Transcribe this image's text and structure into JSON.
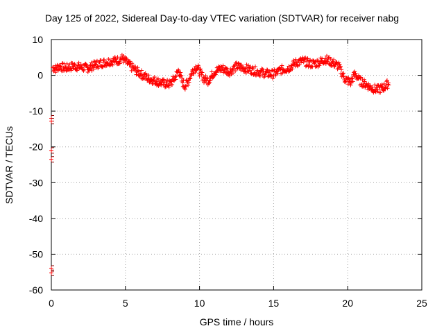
{
  "chart_data": {
    "type": "scatter",
    "title": "Day 125 of 2022, Sidereal Day-to-day VTEC variation (SDTVAR) for receiver nabg",
    "xlabel": "GPS time / hours",
    "ylabel": "SDTVAR / TECUs",
    "xlim": [
      0,
      25
    ],
    "ylim": [
      -60,
      10
    ],
    "xticks": [
      0,
      5,
      10,
      15,
      20,
      25
    ],
    "yticks": [
      10,
      0,
      -10,
      -20,
      -30,
      -40,
      -50,
      -60
    ],
    "grid": true,
    "marker": "+",
    "series": [
      {
        "name": "SDTVAR",
        "color": "#ff0000",
        "trend": [
          [
            0.1,
            2.2
          ],
          [
            0.3,
            1.8
          ],
          [
            0.5,
            2.5
          ],
          [
            1.0,
            2.0
          ],
          [
            1.5,
            2.6
          ],
          [
            2.0,
            2.3
          ],
          [
            2.5,
            2.0
          ],
          [
            3.0,
            3.0
          ],
          [
            3.5,
            3.5
          ],
          [
            4.0,
            4.0
          ],
          [
            4.5,
            4.2
          ],
          [
            4.8,
            4.8
          ],
          [
            5.1,
            3.5
          ],
          [
            5.5,
            2.0
          ],
          [
            6.0,
            0.5
          ],
          [
            6.5,
            -0.8
          ],
          [
            7.0,
            -1.5
          ],
          [
            7.5,
            -2.2
          ],
          [
            8.0,
            -2.5
          ],
          [
            8.3,
            -1.0
          ],
          [
            8.6,
            1.5
          ],
          [
            8.8,
            -1.5
          ],
          [
            9.0,
            -3.0
          ],
          [
            9.2,
            -2.0
          ],
          [
            9.5,
            1.0
          ],
          [
            9.8,
            2.5
          ],
          [
            10.0,
            1.0
          ],
          [
            10.3,
            -1.0
          ],
          [
            10.6,
            -1.5
          ],
          [
            11.0,
            1.0
          ],
          [
            11.5,
            2.0
          ],
          [
            12.0,
            1.0
          ],
          [
            12.5,
            2.5
          ],
          [
            13.0,
            2.0
          ],
          [
            13.5,
            1.5
          ],
          [
            14.0,
            1.0
          ],
          [
            14.5,
            0.5
          ],
          [
            15.0,
            0.3
          ],
          [
            15.5,
            1.5
          ],
          [
            16.0,
            2.0
          ],
          [
            16.5,
            3.5
          ],
          [
            17.0,
            4.0
          ],
          [
            17.5,
            3.2
          ],
          [
            18.0,
            3.5
          ],
          [
            18.5,
            4.5
          ],
          [
            19.0,
            3.5
          ],
          [
            19.4,
            2.5
          ],
          [
            19.8,
            -1.0
          ],
          [
            20.2,
            -2.0
          ],
          [
            20.5,
            0.5
          ],
          [
            20.8,
            -1.5
          ],
          [
            21.2,
            -2.5
          ],
          [
            21.6,
            -3.5
          ],
          [
            22.0,
            -4.0
          ],
          [
            22.4,
            -3.5
          ],
          [
            22.8,
            -2.0
          ]
        ],
        "outliers": [
          [
            0.0,
            -12.0
          ],
          [
            0.0,
            -12.8
          ],
          [
            0.0,
            -21.0
          ],
          [
            0.0,
            -23.5
          ],
          [
            0.0,
            -54.0
          ],
          [
            0.0,
            -55.2
          ]
        ]
      }
    ]
  }
}
